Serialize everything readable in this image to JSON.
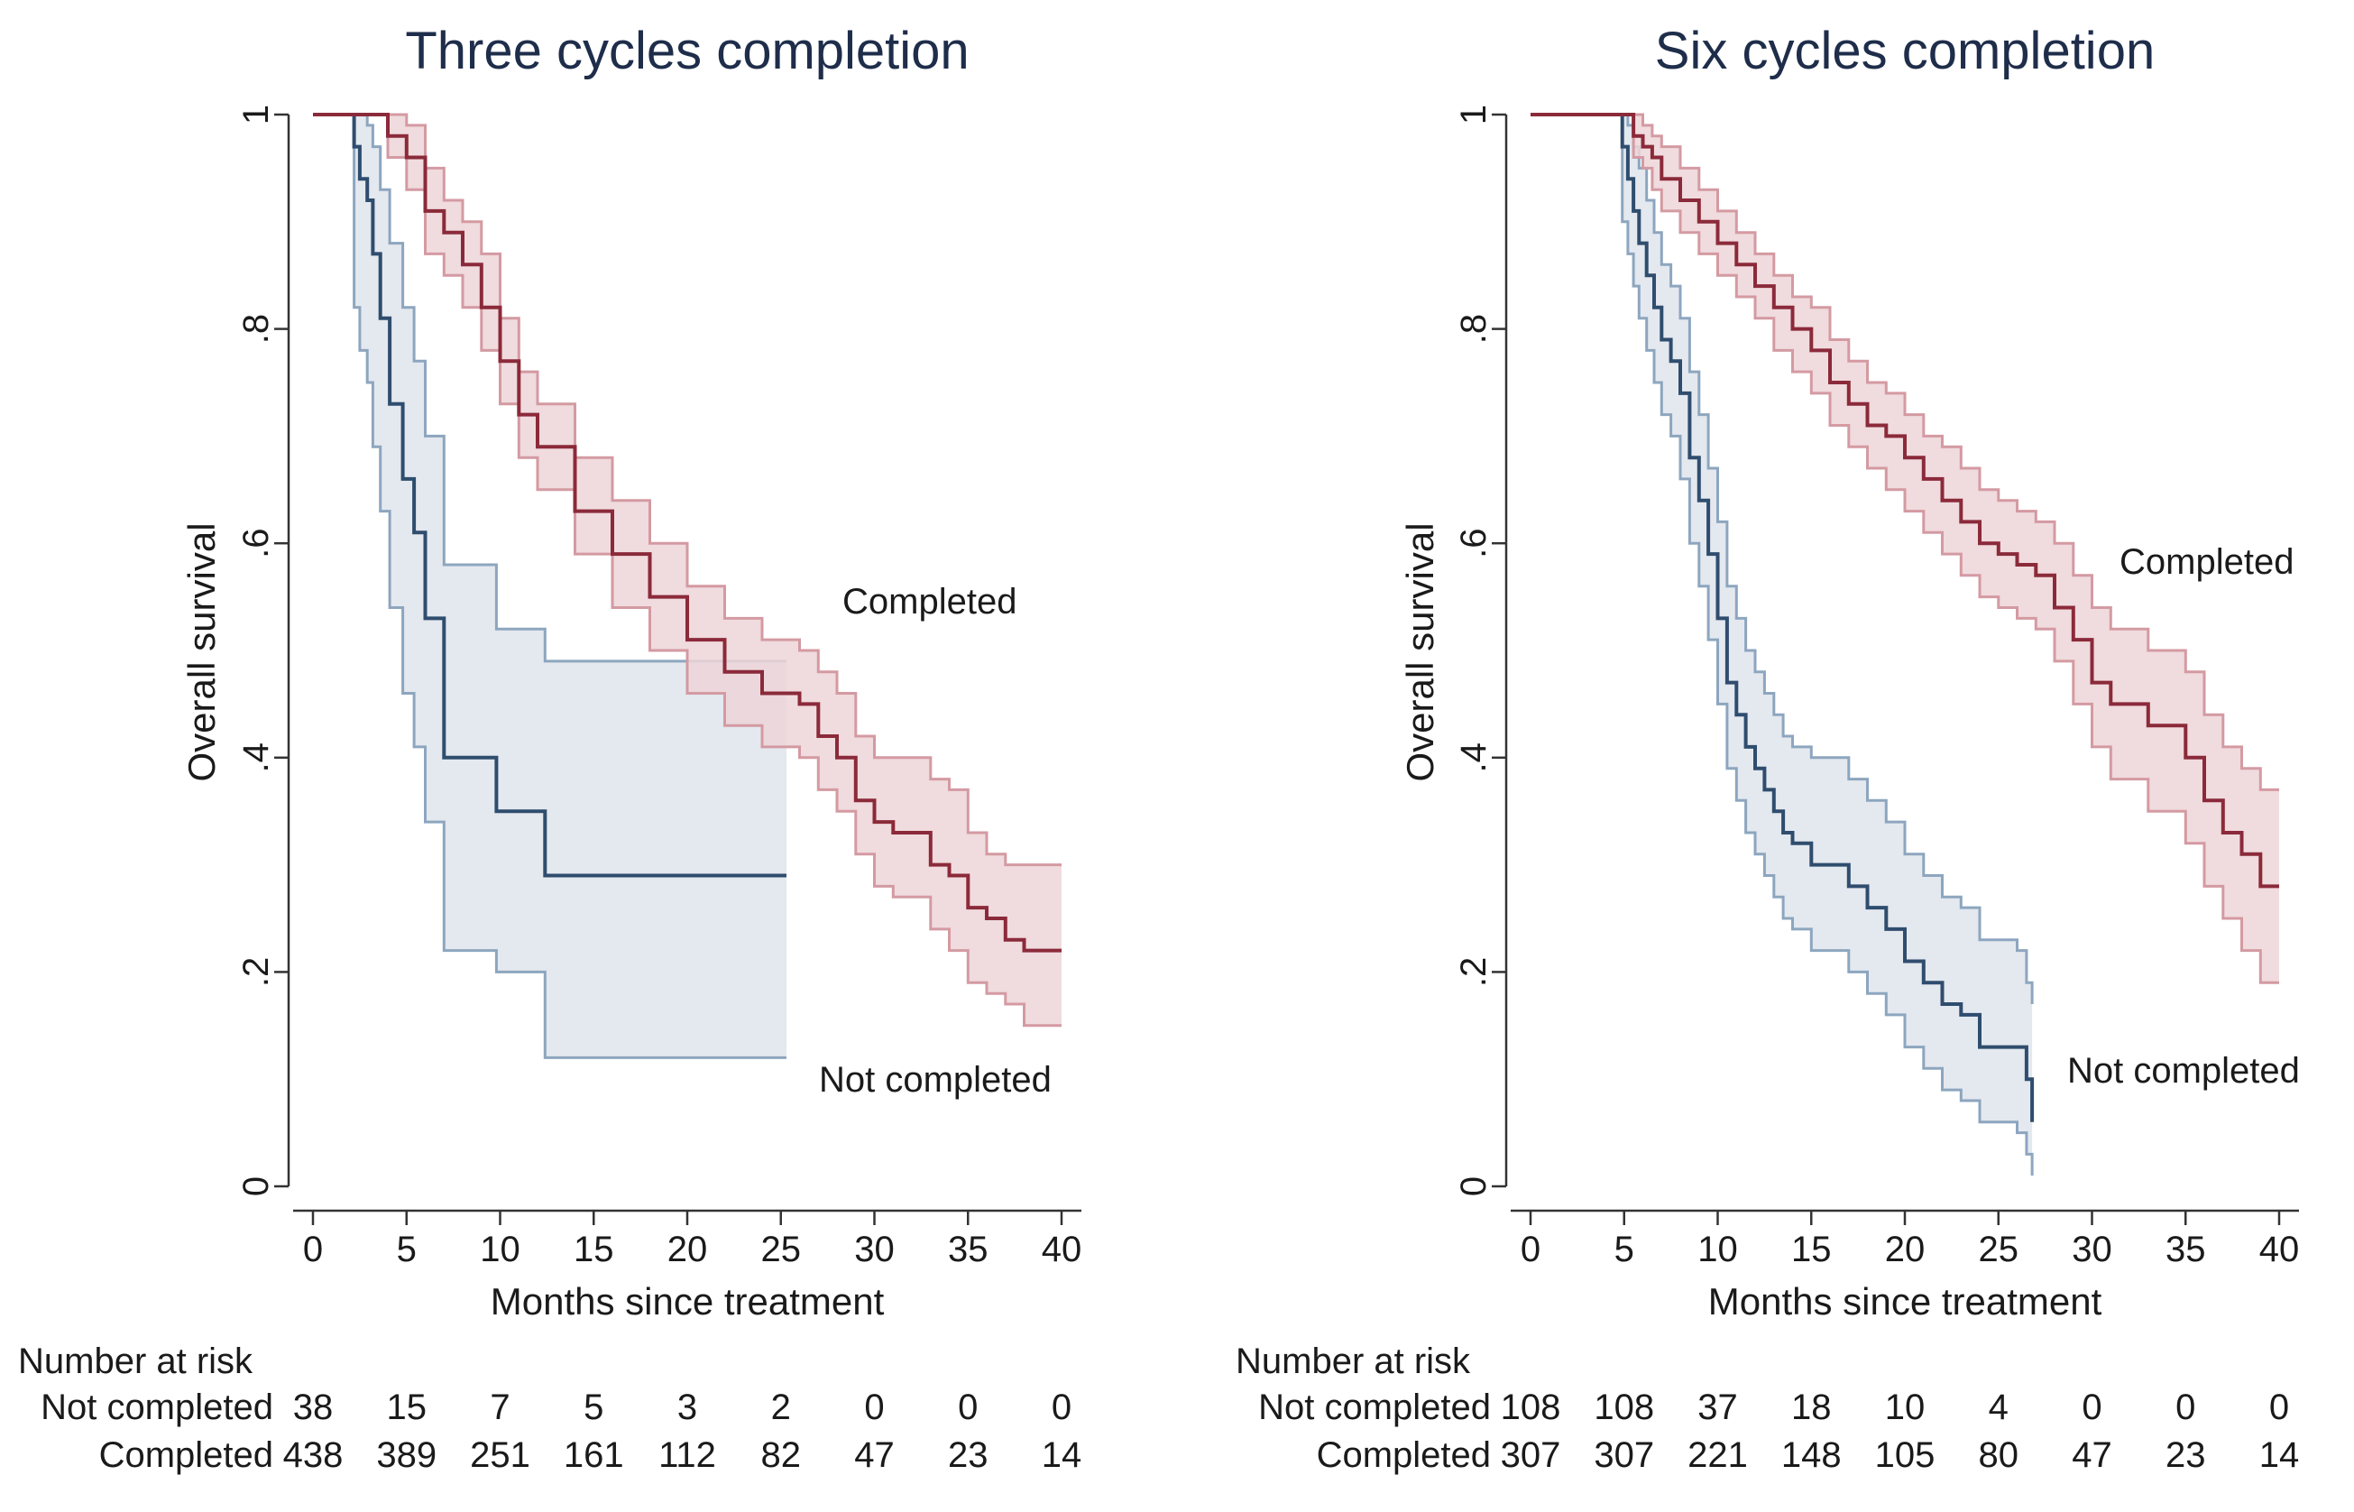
{
  "colors": {
    "not_completed_line": "#2f4d6e",
    "not_completed_band": "#dfe4ec",
    "not_completed_band_edge": "#8da6bf",
    "completed_line": "#8b2a3a",
    "completed_band": "#edd5d8",
    "completed_band_edge": "#d49aa2",
    "axis": "#333333"
  },
  "risk_table": {
    "heading": "Number at risk"
  },
  "chart_data": [
    {
      "type": "line",
      "subtype": "kaplan-meier",
      "title": "Three cycles completion",
      "xlabel": "Months since treatment",
      "ylabel": "Overall survival",
      "xlim": [
        0,
        40
      ],
      "ylim": [
        0,
        1
      ],
      "xticks": [
        0,
        5,
        10,
        15,
        20,
        25,
        30,
        35,
        40
      ],
      "yticks": [
        0,
        0.2,
        0.4,
        0.6,
        0.8,
        1
      ],
      "ytick_labels": [
        "0",
        ".2",
        ".4",
        ".6",
        ".8",
        "1"
      ],
      "series": [
        {
          "name": "Not completed",
          "label_text": "Not completed",
          "style": "not_completed",
          "x": [
            0,
            2.2,
            2.5,
            2.9,
            3.2,
            3.6,
            4.1,
            4.8,
            5.4,
            6.0,
            7.0,
            9.8,
            12.4,
            25.3
          ],
          "y": [
            1,
            0.97,
            0.94,
            0.92,
            0.87,
            0.81,
            0.73,
            0.66,
            0.61,
            0.53,
            0.4,
            0.35,
            0.29,
            0.29
          ],
          "upper": [
            1,
            1,
            1,
            0.99,
            0.97,
            0.93,
            0.88,
            0.82,
            0.77,
            0.7,
            0.58,
            0.52,
            0.49,
            0.49
          ],
          "lower": [
            1,
            0.82,
            0.78,
            0.75,
            0.69,
            0.63,
            0.54,
            0.46,
            0.41,
            0.34,
            0.22,
            0.2,
            0.12,
            0.12
          ]
        },
        {
          "name": "Completed",
          "label_text": "Completed",
          "style": "completed",
          "x": [
            0,
            2.5,
            4,
            5,
            6,
            7,
            8,
            9,
            10,
            11,
            12,
            14,
            16,
            18,
            20,
            22,
            24,
            26,
            27,
            28,
            29,
            30,
            31,
            33,
            34,
            35,
            36,
            37,
            38,
            40
          ],
          "y": [
            1,
            1,
            0.98,
            0.96,
            0.91,
            0.89,
            0.86,
            0.82,
            0.77,
            0.72,
            0.69,
            0.63,
            0.59,
            0.55,
            0.51,
            0.48,
            0.46,
            0.45,
            0.42,
            0.4,
            0.36,
            0.34,
            0.33,
            0.3,
            0.29,
            0.26,
            0.25,
            0.23,
            0.22,
            0.22
          ],
          "upper": [
            1,
            1,
            1,
            0.99,
            0.95,
            0.92,
            0.9,
            0.87,
            0.81,
            0.76,
            0.73,
            0.68,
            0.64,
            0.6,
            0.56,
            0.53,
            0.51,
            0.5,
            0.48,
            0.46,
            0.42,
            0.4,
            0.4,
            0.38,
            0.37,
            0.33,
            0.31,
            0.3,
            0.3,
            0.3
          ],
          "lower": [
            1,
            1,
            0.96,
            0.93,
            0.87,
            0.85,
            0.82,
            0.78,
            0.73,
            0.68,
            0.65,
            0.59,
            0.54,
            0.5,
            0.46,
            0.43,
            0.41,
            0.4,
            0.37,
            0.35,
            0.31,
            0.28,
            0.27,
            0.24,
            0.22,
            0.19,
            0.18,
            0.17,
            0.15,
            0.15
          ]
        }
      ],
      "risk_table": {
        "times": [
          0,
          5,
          10,
          15,
          20,
          25,
          30,
          35,
          40
        ],
        "rows": [
          {
            "label": "Not completed",
            "values": [
              "38",
              "15",
              "7",
              "5",
              "3",
              "2",
              "0",
              "0",
              "0"
            ]
          },
          {
            "label": "Completed",
            "values": [
              "438",
              "389",
              "251",
              "161",
              "112",
              "82",
              "47",
              "23",
              "14"
            ]
          }
        ]
      }
    },
    {
      "type": "line",
      "subtype": "kaplan-meier",
      "title": "Six cycles completion",
      "xlabel": "Months since treatment",
      "ylabel": "Overall survival",
      "xlim": [
        0,
        40
      ],
      "ylim": [
        0,
        1
      ],
      "xticks": [
        0,
        5,
        10,
        15,
        20,
        25,
        30,
        35,
        40
      ],
      "yticks": [
        0,
        0.2,
        0.4,
        0.6,
        0.8,
        1
      ],
      "ytick_labels": [
        "0",
        ".2",
        ".4",
        ".6",
        ".8",
        "1"
      ],
      "series": [
        {
          "name": "Not completed",
          "label_text": "Not completed",
          "style": "not_completed",
          "x": [
            0,
            4.9,
            5.2,
            5.5,
            5.8,
            6.2,
            6.6,
            7.0,
            7.5,
            8.0,
            8.5,
            9.0,
            9.5,
            10.0,
            10.5,
            11.0,
            11.5,
            12.0,
            12.5,
            13.0,
            13.5,
            14.0,
            15,
            17,
            18,
            19,
            20,
            21,
            22,
            23,
            24,
            26,
            26.5,
            26.8
          ],
          "y": [
            1,
            0.97,
            0.94,
            0.91,
            0.88,
            0.85,
            0.82,
            0.79,
            0.77,
            0.74,
            0.68,
            0.64,
            0.59,
            0.53,
            0.47,
            0.44,
            0.41,
            0.39,
            0.37,
            0.35,
            0.33,
            0.32,
            0.3,
            0.28,
            0.26,
            0.24,
            0.21,
            0.19,
            0.17,
            0.16,
            0.13,
            0.13,
            0.1,
            0.06
          ],
          "upper": [
            1,
            1,
            0.99,
            0.97,
            0.95,
            0.92,
            0.89,
            0.86,
            0.84,
            0.81,
            0.76,
            0.72,
            0.67,
            0.62,
            0.56,
            0.53,
            0.5,
            0.48,
            0.46,
            0.44,
            0.42,
            0.41,
            0.4,
            0.38,
            0.36,
            0.34,
            0.31,
            0.29,
            0.27,
            0.26,
            0.23,
            0.22,
            0.19,
            0.17
          ],
          "lower": [
            1,
            0.9,
            0.87,
            0.84,
            0.81,
            0.78,
            0.75,
            0.72,
            0.7,
            0.66,
            0.6,
            0.56,
            0.51,
            0.45,
            0.39,
            0.36,
            0.33,
            0.31,
            0.29,
            0.27,
            0.25,
            0.24,
            0.22,
            0.2,
            0.18,
            0.16,
            0.13,
            0.11,
            0.09,
            0.08,
            0.06,
            0.05,
            0.03,
            0.01
          ]
        },
        {
          "name": "Completed",
          "label_text": "Completed",
          "style": "completed",
          "x": [
            0,
            5,
            5.5,
            6,
            6.5,
            7,
            8,
            9,
            10,
            11,
            12,
            13,
            14,
            15,
            16,
            17,
            18,
            19,
            20,
            21,
            22,
            23,
            24,
            25,
            26,
            27,
            28,
            29,
            30,
            31,
            33,
            35,
            36,
            37,
            38,
            39,
            40
          ],
          "y": [
            1,
            1,
            0.98,
            0.97,
            0.96,
            0.94,
            0.92,
            0.9,
            0.88,
            0.86,
            0.84,
            0.82,
            0.8,
            0.78,
            0.75,
            0.73,
            0.71,
            0.7,
            0.68,
            0.66,
            0.64,
            0.62,
            0.6,
            0.59,
            0.58,
            0.57,
            0.54,
            0.51,
            0.47,
            0.45,
            0.43,
            0.4,
            0.36,
            0.33,
            0.31,
            0.28,
            0.28
          ],
          "upper": [
            1,
            1,
            1,
            0.99,
            0.98,
            0.97,
            0.95,
            0.93,
            0.91,
            0.89,
            0.87,
            0.85,
            0.83,
            0.82,
            0.79,
            0.77,
            0.75,
            0.74,
            0.72,
            0.7,
            0.69,
            0.67,
            0.65,
            0.64,
            0.63,
            0.62,
            0.6,
            0.57,
            0.54,
            0.52,
            0.5,
            0.48,
            0.44,
            0.41,
            0.39,
            0.37,
            0.37
          ],
          "lower": [
            1,
            1,
            0.96,
            0.95,
            0.93,
            0.91,
            0.89,
            0.87,
            0.85,
            0.83,
            0.81,
            0.78,
            0.76,
            0.74,
            0.71,
            0.69,
            0.67,
            0.65,
            0.63,
            0.61,
            0.59,
            0.57,
            0.55,
            0.54,
            0.53,
            0.52,
            0.49,
            0.45,
            0.41,
            0.38,
            0.35,
            0.32,
            0.28,
            0.25,
            0.22,
            0.19,
            0.19
          ]
        }
      ],
      "risk_table": {
        "times": [
          0,
          5,
          10,
          15,
          20,
          25,
          30,
          35,
          40
        ],
        "rows": [
          {
            "label": "Not completed",
            "values": [
              "108",
              "108",
              "37",
              "18",
              "10",
              "4",
              "0",
              "0",
              "0"
            ]
          },
          {
            "label": "Completed",
            "values": [
              "307",
              "307",
              "221",
              "148",
              "105",
              "80",
              "47",
              "23",
              "14"
            ]
          }
        ]
      }
    }
  ]
}
